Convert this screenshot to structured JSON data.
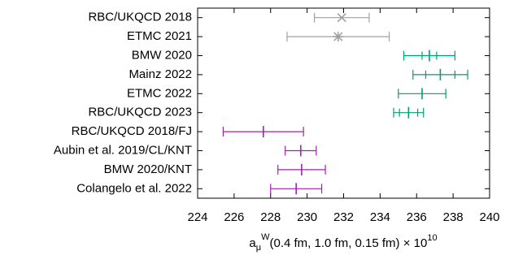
{
  "chart_data": {
    "type": "errorbar",
    "categories": [
      "RBC/UKQCD 2018",
      "ETMC 2021",
      "BMW 2020",
      "Mainz 2022",
      "ETMC 2022",
      "RBC/UKQCD 2023",
      "RBC/UKQCD 2018/FJ",
      "Aubin et al. 2019/CL/KNT",
      "BMW 2020/KNT",
      "Colangelo et al. 2022"
    ],
    "values": [
      231.9,
      231.7,
      236.7,
      237.3,
      236.3,
      235.56,
      227.6,
      229.65,
      229.7,
      229.4
    ],
    "errors": [
      1.5,
      2.8,
      1.4,
      1.5,
      1.3,
      0.82,
      2.2,
      0.85,
      1.3,
      1.4
    ],
    "errors_stat": [
      null,
      null,
      0.4,
      0.8,
      null,
      0.5,
      null,
      null,
      null,
      null
    ],
    "colors": [
      "#a0a0a0",
      "#a0a0a0",
      "#009e73",
      "#009e73",
      "#009e73",
      "#009e73",
      "#a020b0",
      "#a020b0",
      "#a020b0",
      "#a020b0"
    ],
    "markers": [
      "x",
      "*",
      "|",
      "|",
      "|",
      "|",
      "|",
      "|",
      "|",
      "|"
    ],
    "xlim": [
      224,
      240
    ],
    "xticks": [
      224,
      226,
      228,
      230,
      232,
      234,
      236,
      238,
      240
    ],
    "x_label": {
      "base": "a",
      "sub": "μ",
      "sup": "W",
      "rest": "(0.4 fm, 1.0 fm, 0.15 fm) × 10",
      "exp": "10"
    }
  }
}
